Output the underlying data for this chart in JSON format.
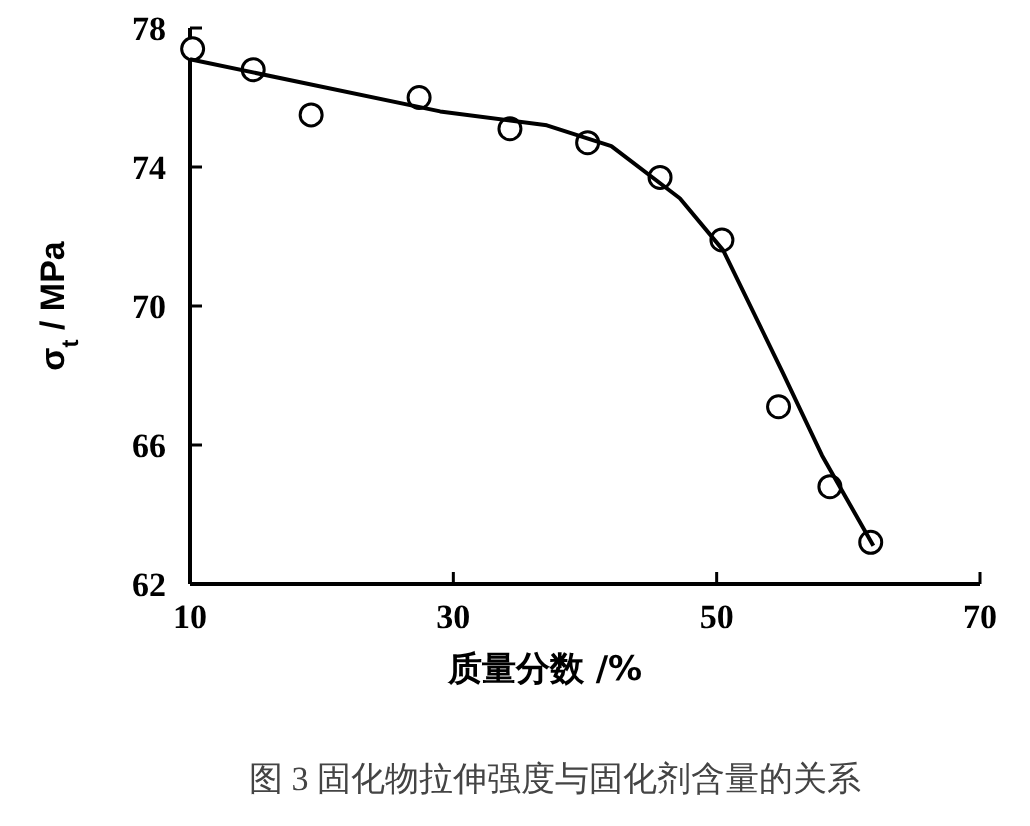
{
  "chart_data": {
    "type": "scatter",
    "xlabel": "质量分数 /%",
    "ylabel": "σ$_{t}$ / MPa",
    "annotations": [
      "图 3  固化物拉伸强度与固化剂含量的关系"
    ],
    "xlim": [
      10,
      70
    ],
    "xticks": [
      10,
      30,
      50,
      70
    ],
    "ylim": [
      62,
      78
    ],
    "yticks": [
      62,
      66,
      70,
      74,
      78
    ],
    "grid": false,
    "series": [
      {
        "marker": "circle",
        "color": "#000000",
        "x": [
          10.2,
          14.8,
          19.2,
          27.4,
          34.3,
          40.2,
          45.7,
          50.4,
          54.7,
          58.6,
          61.7
        ],
        "values": [
          77.4,
          76.8,
          75.5,
          76.0,
          75.1,
          74.7,
          73.7,
          71.9,
          67.1,
          64.8,
          63.2
        ]
      },
      {
        "type": "line",
        "marker": "none",
        "line_style": "solid",
        "color": "#000000",
        "x": [
          10,
          29,
          37.1,
          42,
          47.2,
          50.5,
          55,
          58,
          61.9
        ],
        "values": [
          77.1,
          75.6,
          75.2,
          74.6,
          73.1,
          71.6,
          68.1,
          65.7,
          63.1
        ]
      }
    ]
  }
}
